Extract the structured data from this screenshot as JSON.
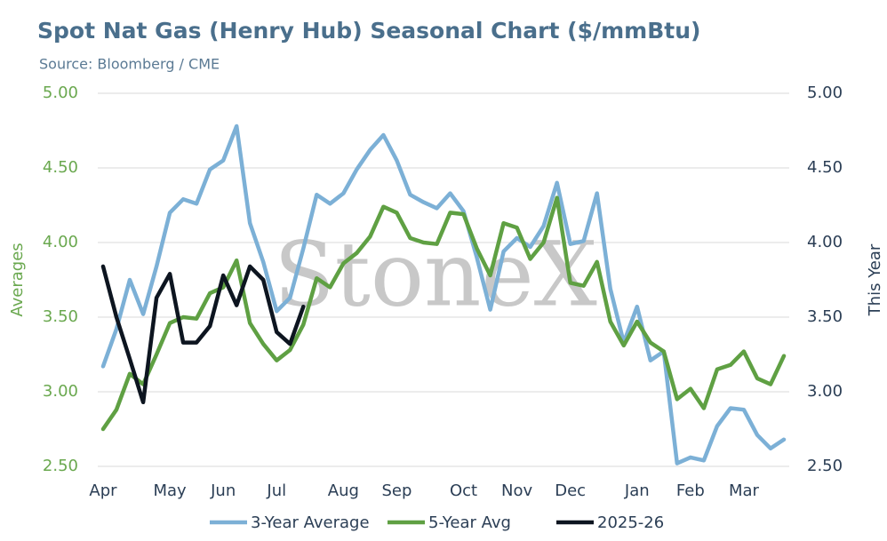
{
  "chart_data": {
    "type": "line",
    "title": "Spot Nat Gas (Henry Hub) Seasonal Chart ($/mmBtu)",
    "subtitle": "Source: Bloomberg / CME",
    "watermark": "StoneX",
    "y_label": "Averages",
    "y2_label": "This Year",
    "categories": [
      "Apr",
      null,
      null,
      null,
      null,
      "May",
      null,
      null,
      null,
      "Jun",
      null,
      null,
      null,
      "Jul",
      null,
      null,
      null,
      null,
      "Aug",
      null,
      null,
      null,
      "Sep",
      null,
      null,
      null,
      null,
      "Oct",
      null,
      null,
      null,
      "Nov",
      null,
      null,
      null,
      "Dec",
      null,
      null,
      null,
      null,
      "Jan",
      null,
      null,
      null,
      "Feb",
      null,
      null,
      null,
      "Mar",
      null,
      null,
      null
    ],
    "ylim": [
      2.5,
      5.0
    ],
    "yticks": [
      {
        "value": 2.5,
        "label": "2.50"
      },
      {
        "value": 3.0,
        "label": "3.00"
      },
      {
        "value": 3.5,
        "label": "3.50"
      },
      {
        "value": 4.0,
        "label": "4.00"
      },
      {
        "value": 4.5,
        "label": "4.50"
      },
      {
        "value": 5.0,
        "label": "5.00"
      }
    ],
    "y2lim": [
      2.5,
      5.0
    ],
    "y2ticks": [
      {
        "value": 2.5,
        "label": "2.50"
      },
      {
        "value": 3.0,
        "label": "3.00"
      },
      {
        "value": 3.5,
        "label": "3.50"
      },
      {
        "value": 4.0,
        "label": "4.00"
      },
      {
        "value": 4.5,
        "label": "4.50"
      },
      {
        "value": 5.0,
        "label": "5.00"
      }
    ],
    "grid": true,
    "legend": "bottom",
    "series": [
      {
        "name": "3-Year Average",
        "color": "#7cb0d6",
        "values": [
          3.17,
          3.42,
          3.75,
          3.52,
          3.84,
          4.2,
          4.29,
          4.26,
          4.49,
          4.55,
          4.78,
          4.13,
          3.87,
          3.54,
          3.63,
          3.96,
          4.32,
          4.26,
          4.33,
          4.49,
          4.62,
          4.72,
          4.55,
          4.32,
          4.27,
          4.23,
          4.33,
          4.21,
          3.9,
          3.55,
          3.94,
          4.03,
          3.97,
          4.11,
          4.4,
          3.99,
          4.01,
          4.33,
          3.69,
          3.33,
          3.57,
          3.21,
          3.27,
          2.52,
          2.56,
          2.54,
          2.77,
          2.89,
          2.88,
          2.71,
          2.62,
          2.68
        ]
      },
      {
        "name": "5-Year Avg",
        "color": "#5fa043",
        "values": [
          2.75,
          2.88,
          3.12,
          3.05,
          3.25,
          3.46,
          3.5,
          3.49,
          3.66,
          3.7,
          3.88,
          3.46,
          3.32,
          3.21,
          3.28,
          3.45,
          3.76,
          3.7,
          3.86,
          3.93,
          4.04,
          4.24,
          4.2,
          4.03,
          4.0,
          3.99,
          4.2,
          4.19,
          3.96,
          3.78,
          4.13,
          4.1,
          3.89,
          4.0,
          4.3,
          3.73,
          3.71,
          3.87,
          3.47,
          3.31,
          3.47,
          3.33,
          3.27,
          2.95,
          3.02,
          2.89,
          3.15,
          3.18,
          3.27,
          3.09,
          3.05,
          3.24
        ]
      },
      {
        "name": "2025-26",
        "color": "#0d1520",
        "axis": "y2",
        "values": [
          3.84,
          3.5,
          3.22,
          2.93,
          3.63,
          3.79,
          3.33,
          3.33,
          3.44,
          3.78,
          3.58,
          3.84,
          3.75,
          3.4,
          3.32,
          3.57,
          null,
          null,
          null,
          null,
          null,
          null,
          null,
          null,
          null,
          null,
          null,
          null,
          null,
          null,
          null,
          null,
          null,
          null,
          null,
          null,
          null,
          null,
          null,
          null,
          null,
          null,
          null,
          null,
          null,
          null,
          null,
          null,
          null,
          null,
          null,
          null
        ]
      }
    ]
  }
}
